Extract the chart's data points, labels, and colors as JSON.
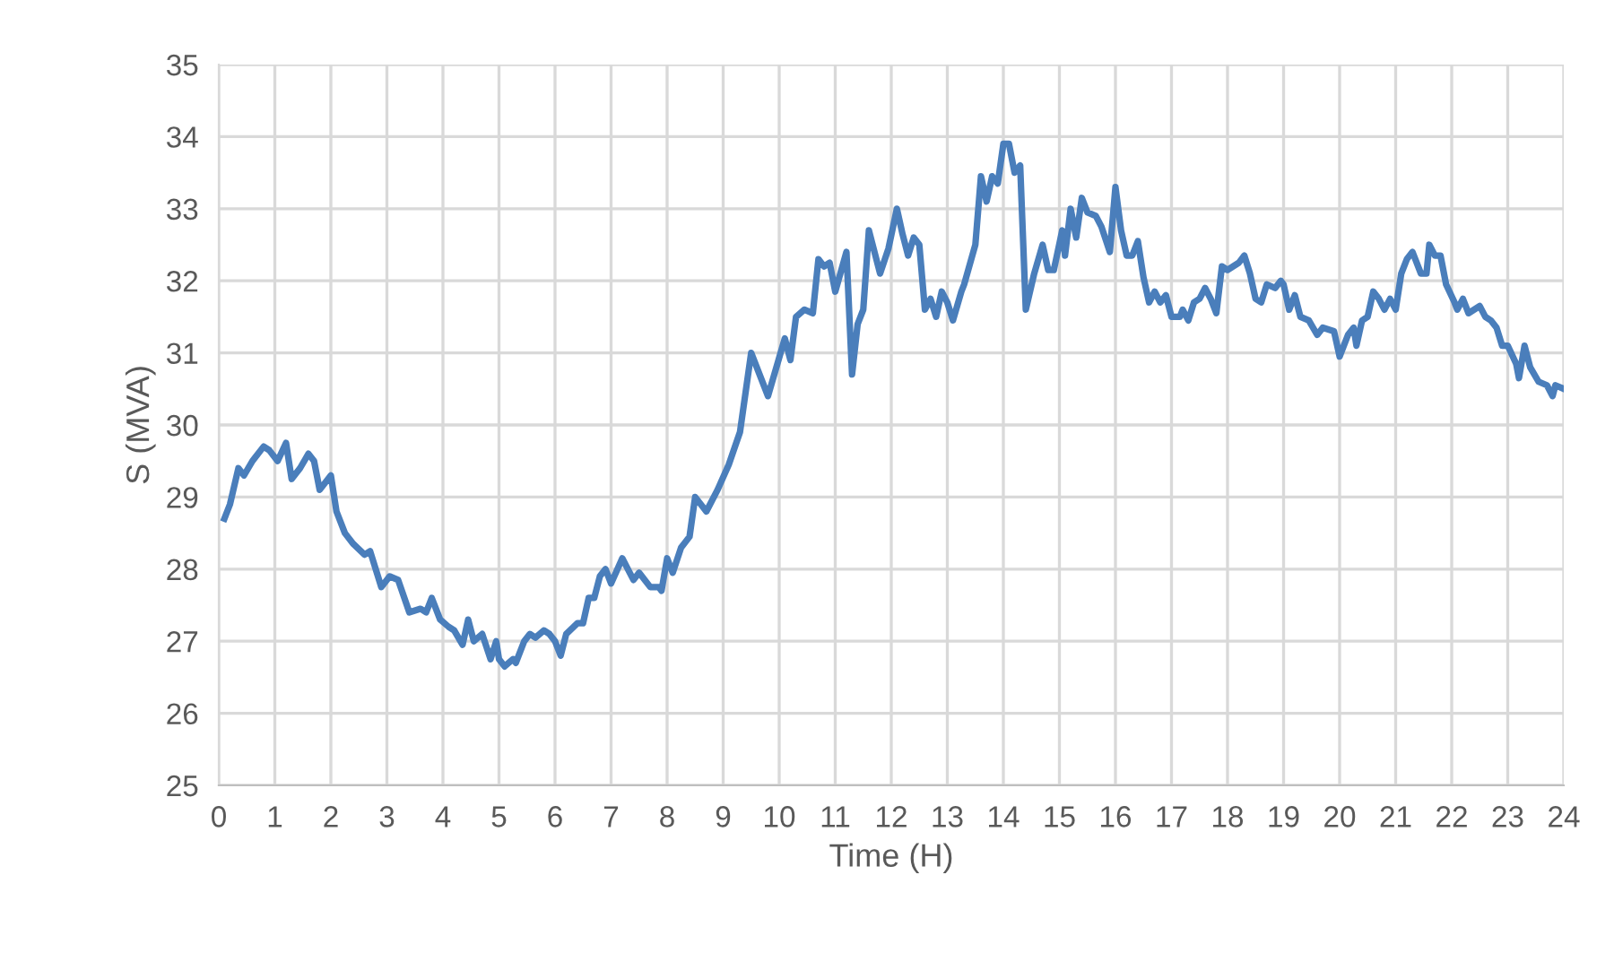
{
  "chart_data": {
    "type": "line",
    "xlabel": "Time (H)",
    "ylabel": "S (MVA)",
    "xlim": [
      0,
      24
    ],
    "xticks": [
      0,
      1,
      2,
      3,
      4,
      5,
      6,
      7,
      8,
      9,
      10,
      11,
      12,
      13,
      14,
      15,
      16,
      17,
      18,
      19,
      20,
      21,
      22,
      23,
      24
    ],
    "ylim": [
      25,
      35
    ],
    "yticks": [
      25,
      26,
      27,
      28,
      29,
      30,
      31,
      32,
      33,
      34,
      35
    ],
    "grid": true,
    "legend": false,
    "marker": "none",
    "line_style": "solid",
    "series": [
      {
        "color": "#4a7ebb",
        "x": [
          0.1,
          0.2,
          0.35,
          0.45,
          0.6,
          0.8,
          0.9,
          1.05,
          1.2,
          1.3,
          1.45,
          1.6,
          1.7,
          1.8,
          2.0,
          2.1,
          2.25,
          2.4,
          2.6,
          2.7,
          2.9,
          3.05,
          3.2,
          3.4,
          3.6,
          3.7,
          3.8,
          3.95,
          4.1,
          4.2,
          4.35,
          4.45,
          4.55,
          4.7,
          4.85,
          4.95,
          5.0,
          5.1,
          5.25,
          5.3,
          5.45,
          5.55,
          5.65,
          5.8,
          5.9,
          6.0,
          6.1,
          6.2,
          6.4,
          6.5,
          6.6,
          6.7,
          6.8,
          6.9,
          7.0,
          7.2,
          7.3,
          7.4,
          7.5,
          7.7,
          7.85,
          7.9,
          8.0,
          8.1,
          8.25,
          8.4,
          8.5,
          8.7,
          8.9,
          9.1,
          9.3,
          9.5,
          9.8,
          10.1,
          10.2,
          10.3,
          10.45,
          10.6,
          10.7,
          10.8,
          10.9,
          11.0,
          11.2,
          11.3,
          11.4,
          11.5,
          11.6,
          11.8,
          11.95,
          12.1,
          12.2,
          12.3,
          12.4,
          12.5,
          12.6,
          12.7,
          12.8,
          12.9,
          13.0,
          13.1,
          13.25,
          13.3,
          13.5,
          13.6,
          13.7,
          13.8,
          13.9,
          14.0,
          14.1,
          14.2,
          14.3,
          14.4,
          14.55,
          14.7,
          14.8,
          14.9,
          15.05,
          15.1,
          15.2,
          15.3,
          15.4,
          15.5,
          15.65,
          15.75,
          15.9,
          16.0,
          16.1,
          16.2,
          16.3,
          16.4,
          16.5,
          16.6,
          16.7,
          16.8,
          16.9,
          17.0,
          17.15,
          17.2,
          17.3,
          17.4,
          17.5,
          17.6,
          17.7,
          17.8,
          17.9,
          18.0,
          18.2,
          18.3,
          18.4,
          18.5,
          18.6,
          18.7,
          18.85,
          18.95,
          19.0,
          19.1,
          19.2,
          19.3,
          19.45,
          19.6,
          19.7,
          19.9,
          20.0,
          20.15,
          20.25,
          20.3,
          20.4,
          20.5,
          20.6,
          20.7,
          20.8,
          20.9,
          21.0,
          21.1,
          21.2,
          21.3,
          21.45,
          21.55,
          21.6,
          21.7,
          21.8,
          21.9,
          22.05,
          22.1,
          22.2,
          22.3,
          22.4,
          22.5,
          22.6,
          22.7,
          22.8,
          22.9,
          23.0,
          23.15,
          23.2,
          23.3,
          23.4,
          23.55,
          23.7,
          23.8,
          23.85,
          24.0
        ],
        "values": [
          28.7,
          28.9,
          29.4,
          29.3,
          29.5,
          29.7,
          29.65,
          29.5,
          29.75,
          29.25,
          29.4,
          29.6,
          29.5,
          29.1,
          29.3,
          28.8,
          28.5,
          28.35,
          28.2,
          28.25,
          27.75,
          27.9,
          27.85,
          27.4,
          27.45,
          27.4,
          27.6,
          27.3,
          27.2,
          27.15,
          26.95,
          27.3,
          27.0,
          27.1,
          26.75,
          27.0,
          26.75,
          26.65,
          26.75,
          26.7,
          27.0,
          27.1,
          27.05,
          27.15,
          27.1,
          27.0,
          26.8,
          27.1,
          27.25,
          27.25,
          27.6,
          27.6,
          27.9,
          28.0,
          27.8,
          28.15,
          28.0,
          27.85,
          27.95,
          27.75,
          27.75,
          27.7,
          28.15,
          27.95,
          28.3,
          28.45,
          29.0,
          28.8,
          29.1,
          29.45,
          29.9,
          31.0,
          30.4,
          31.2,
          30.9,
          31.5,
          31.6,
          31.55,
          32.3,
          32.2,
          32.25,
          31.85,
          32.4,
          30.7,
          31.4,
          31.6,
          32.7,
          32.1,
          32.45,
          33.0,
          32.65,
          32.35,
          32.6,
          32.5,
          31.6,
          31.75,
          31.5,
          31.85,
          31.7,
          31.45,
          31.85,
          31.95,
          32.5,
          33.45,
          33.1,
          33.45,
          33.35,
          33.9,
          33.9,
          33.5,
          33.6,
          31.6,
          32.1,
          32.5,
          32.15,
          32.15,
          32.7,
          32.35,
          33.0,
          32.6,
          33.15,
          32.95,
          32.9,
          32.75,
          32.4,
          33.3,
          32.7,
          32.35,
          32.35,
          32.55,
          32.05,
          31.7,
          31.85,
          31.7,
          31.8,
          31.5,
          31.5,
          31.6,
          31.45,
          31.7,
          31.75,
          31.9,
          31.75,
          31.55,
          32.2,
          32.15,
          32.25,
          32.35,
          32.1,
          31.75,
          31.7,
          31.95,
          31.9,
          32.0,
          31.95,
          31.6,
          31.8,
          31.5,
          31.45,
          31.25,
          31.35,
          31.3,
          30.95,
          31.25,
          31.35,
          31.1,
          31.45,
          31.5,
          31.85,
          31.75,
          31.6,
          31.75,
          31.6,
          32.1,
          32.3,
          32.4,
          32.1,
          32.1,
          32.5,
          32.35,
          32.35,
          31.95,
          31.7,
          31.6,
          31.75,
          31.55,
          31.6,
          31.65,
          31.5,
          31.45,
          31.35,
          31.1,
          31.1,
          30.85,
          30.65,
          31.1,
          30.8,
          30.6,
          30.55,
          30.4,
          30.55,
          30.5
        ]
      }
    ]
  }
}
